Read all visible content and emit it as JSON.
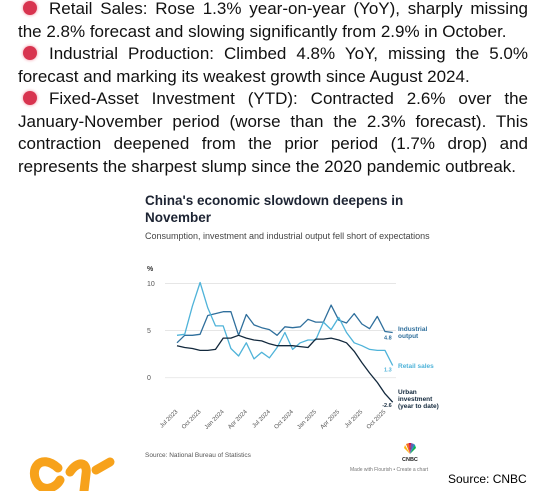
{
  "paragraphs": [
    "Retail Sales: Rose 1.3% year-on-year (YoY), sharply missing the 2.8% forecast and slowing significantly from 2.9% in October.",
    "Industrial Production: Climbed 4.8% YoY, missing the 5.0% forecast and marking its weakest growth since August 2024.",
    "Fixed-Asset Investment (YTD): Contracted 2.6% over the January-November period (worse than the 2.3% forecast). This contraction deepened from the prior period (1.7% drop) and represents the sharpest slump since the 2020 pandemic outbreak."
  ],
  "page_source": "Source: CNBC",
  "chart_data": {
    "type": "line",
    "title": "China's economic slowdown deepens in November",
    "subtitle": "Consumption, investment and industrial output fell short of expectations",
    "y_label": "%",
    "categories": [
      "Jul 2023",
      null,
      null,
      "Oct 2023",
      null,
      null,
      "Jan 2024",
      null,
      null,
      "Apr 2024",
      null,
      null,
      "Jul 2024",
      null,
      null,
      "Oct 2024",
      null,
      null,
      "Jan 2025",
      null,
      null,
      "Apr 2025",
      null,
      null,
      "Jul 2025",
      null,
      null,
      "Oct 2025",
      null
    ],
    "series": [
      {
        "name": "Industrial output",
        "color": "#2f6f9c",
        "values": [
          3.7,
          4.5,
          4.5,
          4.6,
          6.6,
          6.8,
          7.0,
          7.0,
          4.5,
          6.7,
          5.6,
          5.3,
          5.1,
          4.5,
          5.4,
          5.3,
          5.4,
          6.2,
          5.9,
          5.9,
          7.7,
          6.1,
          5.8,
          6.8,
          5.7,
          5.2,
          6.5,
          4.9,
          4.8
        ]
      },
      {
        "name": "Retail sales",
        "color": "#4fb3d9",
        "values": [
          4.5,
          4.6,
          7.6,
          10.1,
          7.4,
          5.5,
          5.5,
          3.1,
          2.3,
          3.7,
          2.0,
          2.7,
          2.1,
          3.2,
          4.8,
          3.0,
          3.7,
          4.0,
          4.0,
          5.9,
          5.1,
          6.4,
          4.8,
          3.7,
          3.4,
          3.0,
          2.9,
          2.9,
          1.3
        ]
      },
      {
        "name": "Urban investment (year to date)",
        "color": "#13293d",
        "values": [
          3.4,
          3.2,
          3.1,
          2.9,
          2.9,
          3.0,
          4.2,
          4.2,
          4.5,
          4.2,
          4.0,
          3.9,
          3.6,
          3.4,
          3.4,
          3.4,
          3.3,
          3.2,
          4.1,
          4.1,
          4.2,
          4.0,
          3.7,
          2.8,
          1.6,
          0.5,
          -0.5,
          -1.7,
          -2.6
        ]
      }
    ],
    "ylim": [
      -3,
      11
    ],
    "yticks": [
      0,
      5,
      10
    ],
    "grid": true,
    "source": "Source: National Bureau of Statistics",
    "credit": "Made with Flourish • Create a chart",
    "logo": "CNBC"
  }
}
